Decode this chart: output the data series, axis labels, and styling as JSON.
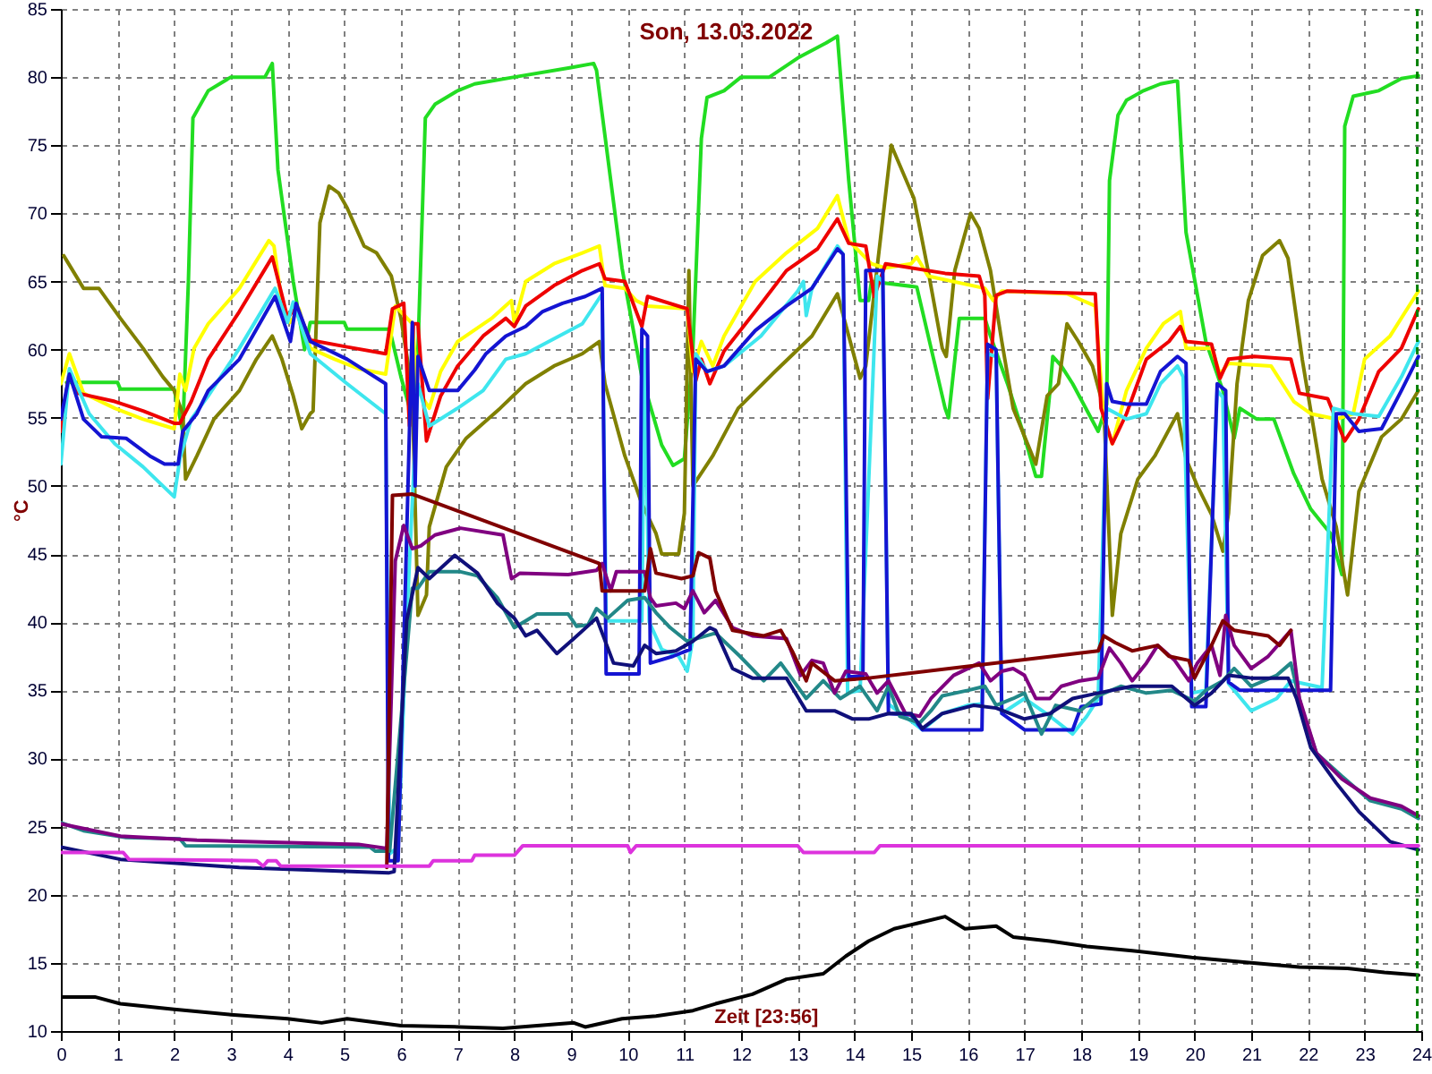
{
  "chart_data": {
    "type": "line",
    "title": "Son, 13.03.2022",
    "xlabel": "Zeit [23:56]",
    "ylabel": "°C",
    "xlim": [
      0,
      24
    ],
    "ylim": [
      10,
      85
    ],
    "xticks": [
      0,
      1,
      2,
      3,
      4,
      5,
      6,
      7,
      8,
      9,
      10,
      11,
      12,
      13,
      14,
      15,
      16,
      17,
      18,
      19,
      20,
      21,
      22,
      23,
      24
    ],
    "yticks": [
      10,
      15,
      20,
      25,
      30,
      35,
      40,
      45,
      50,
      55,
      60,
      65,
      70,
      75,
      80,
      85
    ],
    "grid": true,
    "ref_lines": [
      {
        "axis": "x",
        "value": 23.93,
        "color": "#008000",
        "line_style": "dashed"
      }
    ],
    "series": [
      {
        "color": "#22dd22",
        "x": [
          0.1,
          1.0,
          1.05,
          2.0,
          2.15,
          2.25,
          2.33,
          2.6,
          2.8,
          3.0,
          3.6,
          3.73,
          3.83,
          4.1,
          4.3,
          4.4,
          5.0,
          5.05,
          5.8,
          6.0,
          6.2,
          6.3,
          6.43,
          6.6,
          7.0,
          7.3,
          8.0,
          9.0,
          9.4,
          9.45,
          9.9,
          10.25,
          10.6,
          10.8,
          11.0,
          11.15,
          11.3,
          11.4,
          11.7,
          12.0,
          12.5,
          13.0,
          13.5,
          13.7,
          13.9,
          14.1,
          14.25,
          14.3,
          15.1,
          15.6,
          15.66,
          15.85,
          16.3,
          16.4,
          16.7,
          17.0,
          17.2,
          17.3,
          17.45,
          17.5,
          17.65,
          17.85,
          18.3,
          18.45,
          18.5,
          18.65,
          18.8,
          19.1,
          19.4,
          19.65,
          19.7,
          19.85,
          20.2,
          20.5,
          20.7,
          20.8,
          21.1,
          21.4,
          21.75,
          22.05,
          22.4,
          22.6,
          22.65,
          22.8,
          23.25,
          23.65,
          23.95
        ],
        "values": [
          57.6,
          57.6,
          57.1,
          57.1,
          54,
          65,
          77,
          79,
          79.5,
          80,
          80,
          81,
          73.2,
          65,
          60,
          62,
          62,
          61.5,
          61.5,
          58,
          55,
          60,
          77,
          78,
          79,
          79.5,
          80,
          80.7,
          81,
          80.5,
          66,
          58,
          53,
          51.5,
          52,
          60,
          75.5,
          78.5,
          79,
          80,
          80,
          81.4,
          82.5,
          83,
          72.4,
          63.6,
          63.6,
          65,
          64.6,
          55.7,
          55,
          62.3,
          62.3,
          61,
          57.5,
          53.6,
          50.7,
          50.7,
          57,
          59.5,
          58.8,
          57.5,
          54,
          56,
          72.4,
          77.2,
          78.3,
          79,
          79.5,
          79.7,
          79.7,
          68.6,
          60.6,
          57,
          53.5,
          55.7,
          54.9,
          54.9,
          50.9,
          48.3,
          46.5,
          43.5,
          76.4,
          78.6,
          79,
          79.9,
          80.1
        ]
      },
      {
        "color": "#808000",
        "x": [
          0.05,
          0.4,
          0.67,
          1.05,
          1.45,
          1.8,
          2.0,
          2.15,
          2.2,
          2.4,
          2.7,
          3.15,
          3.45,
          3.73,
          3.9,
          4.1,
          4.25,
          4.4,
          4.45,
          4.57,
          4.73,
          4.9,
          5.05,
          5.35,
          5.57,
          5.83,
          6.0,
          6.2,
          6.3,
          6.45,
          6.5,
          6.8,
          7.15,
          7.75,
          8.2,
          8.7,
          9.2,
          9.5,
          9.6,
          9.95,
          10.25,
          10.5,
          10.6,
          10.9,
          11.0,
          11.08,
          11.15,
          11.5,
          11.95,
          12.6,
          13.25,
          13.7,
          14.1,
          14.2,
          14.4,
          14.65,
          15.05,
          15.3,
          15.55,
          15.62,
          15.77,
          16.05,
          16.2,
          16.4,
          16.6,
          16.8,
          17.2,
          17.4,
          17.6,
          17.75,
          17.95,
          18.2,
          18.4,
          18.55,
          18.7,
          19.0,
          19.3,
          19.7,
          19.85,
          20.05,
          20.3,
          20.5,
          20.6,
          20.75,
          20.95,
          21.2,
          21.5,
          21.65,
          21.9,
          22.25,
          22.5,
          22.7,
          22.9,
          23.3,
          23.65,
          23.95
        ],
        "values": [
          66.9,
          64.5,
          64.5,
          62.3,
          60.1,
          58,
          57,
          55.3,
          50.5,
          52.2,
          54.9,
          57,
          59.3,
          61,
          59.3,
          56.6,
          54.2,
          55.3,
          55.5,
          69.3,
          72,
          71.5,
          70.4,
          67.6,
          67.1,
          65.4,
          62.3,
          57,
          40.5,
          42,
          47,
          51.4,
          53.5,
          55.7,
          57.5,
          58.8,
          59.7,
          60.6,
          57.5,
          52.2,
          48.7,
          46.5,
          45,
          45,
          48,
          65.8,
          50,
          52.2,
          55.7,
          58.4,
          61,
          64.1,
          57.9,
          58.8,
          66,
          75,
          71.1,
          65.8,
          60.1,
          59.5,
          65.8,
          70,
          68.9,
          65.8,
          60.6,
          55.7,
          51.6,
          56.6,
          57.5,
          61.9,
          60.6,
          58.8,
          55.7,
          40.5,
          46.5,
          50.5,
          52.2,
          55.3,
          52,
          50,
          47.9,
          45.2,
          48,
          57.5,
          63.6,
          66.9,
          68,
          66.7,
          59.3,
          50.5,
          47,
          42,
          49.6,
          53.6,
          54.9,
          57
        ]
      },
      {
        "color": "#ffff00",
        "x": [
          0.0,
          0.15,
          0.4,
          0.95,
          1.45,
          2.0,
          2.1,
          2.2,
          2.35,
          2.6,
          3.15,
          3.67,
          3.76,
          3.9,
          4.05,
          4.2,
          4.4,
          4.83,
          5.25,
          5.73,
          5.9,
          6.2,
          6.3,
          6.5,
          6.7,
          7.0,
          7.6,
          7.95,
          8.0,
          8.2,
          8.7,
          9.2,
          9.5,
          9.6,
          9.95,
          10.15,
          10.35,
          11.05,
          11.15,
          11.3,
          11.5,
          11.7,
          12.25,
          12.8,
          13.35,
          13.7,
          13.9,
          14.3,
          14.55,
          15.0,
          15.1,
          15.3,
          16.3,
          16.45,
          16.6,
          17.75,
          18.25,
          18.4,
          18.55,
          18.8,
          19.15,
          19.45,
          19.75,
          19.85,
          20.3,
          20.45,
          20.6,
          21.35,
          21.75,
          22.05,
          22.5,
          22.8,
          23.0,
          23.45,
          23.95
        ],
        "values": [
          57.5,
          59.7,
          56.8,
          55.7,
          54.9,
          54.2,
          58.2,
          57,
          60.1,
          61.9,
          64.5,
          68,
          67.6,
          63.4,
          62,
          63,
          60.1,
          59.3,
          58.6,
          58.2,
          63.2,
          61.9,
          57,
          55.7,
          58.4,
          60.6,
          62.3,
          63.6,
          61.9,
          65,
          66.3,
          67.1,
          67.6,
          64.7,
          64.5,
          63.6,
          63.2,
          63,
          58.4,
          60.6,
          58.8,
          61,
          65,
          67.1,
          68.9,
          71.3,
          68,
          66.3,
          66,
          66.3,
          66.8,
          65.4,
          64.5,
          63.6,
          64.3,
          64.1,
          63.2,
          54.9,
          53.1,
          57,
          60.1,
          61.9,
          62.8,
          60.1,
          60.1,
          58.2,
          59,
          58.8,
          56.2,
          55.3,
          54.9,
          55.3,
          59.3,
          61,
          64.3
        ]
      },
      {
        "color": "#ee0000",
        "x": [
          0.0,
          0.15,
          0.3,
          0.95,
          1.45,
          2.0,
          2.1,
          2.3,
          2.6,
          3.15,
          3.73,
          3.9,
          4.0,
          4.15,
          4.4,
          5.05,
          5.73,
          5.85,
          6.05,
          6.15,
          6.22,
          6.3,
          6.45,
          6.7,
          7.0,
          7.45,
          7.85,
          8.0,
          8.2,
          8.7,
          9.2,
          9.5,
          9.6,
          9.95,
          10.25,
          10.35,
          11.05,
          11.2,
          11.3,
          11.45,
          11.7,
          12.25,
          12.8,
          13.35,
          13.7,
          13.9,
          14.2,
          14.35,
          14.55,
          15.6,
          16.2,
          16.3,
          16.35,
          16.5,
          16.7,
          18.25,
          18.35,
          18.55,
          18.8,
          19.15,
          19.55,
          19.75,
          19.85,
          20.3,
          20.45,
          20.6,
          21.05,
          21.7,
          21.85,
          22.35,
          22.65,
          22.9,
          23.25,
          23.65,
          23.95
        ],
        "values": [
          54,
          58.4,
          56.8,
          56.2,
          55.5,
          54.6,
          54.6,
          56.2,
          59.3,
          62.8,
          66.8,
          64,
          62.3,
          63.2,
          60.7,
          60.2,
          59.7,
          63,
          63.4,
          54.4,
          61.9,
          61.9,
          53.3,
          56.6,
          58.8,
          61,
          62.3,
          61.7,
          63.2,
          64.7,
          65.8,
          66.3,
          65.2,
          65,
          61.7,
          63.9,
          63,
          57.7,
          59.3,
          57.5,
          59.9,
          62.8,
          65.8,
          67.4,
          69.6,
          67.8,
          67.6,
          63.9,
          66.3,
          65.6,
          65.4,
          64,
          56.4,
          64,
          64.3,
          64.1,
          55.7,
          53.1,
          55.3,
          59.3,
          60.6,
          61.7,
          60.6,
          60.4,
          57.9,
          59.3,
          59.5,
          59.3,
          56.8,
          56.4,
          53.3,
          54.9,
          58.4,
          60.1,
          63
        ]
      },
      {
        "color": "#3ee6ee",
        "x": [
          0.0,
          0.15,
          0.5,
          0.95,
          1.45,
          2.0,
          2.1,
          2.3,
          2.6,
          3.15,
          3.78,
          4.0,
          4.1,
          4.4,
          5.05,
          5.73,
          5.8,
          5.95,
          6.1,
          6.3,
          6.5,
          7.0,
          7.45,
          7.85,
          8.2,
          8.7,
          9.2,
          9.55,
          9.62,
          10.25,
          10.3,
          10.38,
          10.6,
          10.9,
          11.05,
          11.15,
          11.2,
          11.4,
          11.7,
          12.35,
          13.0,
          13.1,
          13.15,
          13.25,
          13.7,
          13.8,
          13.88,
          14.1,
          14.4,
          14.5,
          14.6,
          15.2,
          15.55,
          16.0,
          16.25,
          16.35,
          16.5,
          16.6,
          17.0,
          17.45,
          17.85,
          18.1,
          18.3,
          18.45,
          18.8,
          19.15,
          19.4,
          19.7,
          19.8,
          19.95,
          20.2,
          20.4,
          20.5,
          20.6,
          21.0,
          21.45,
          21.7,
          22.25,
          22.45,
          22.8,
          23.25,
          23.65,
          23.95
        ],
        "values": [
          51.6,
          58.6,
          55.3,
          53.1,
          51.4,
          49.2,
          52,
          54.9,
          56.6,
          60.1,
          64.5,
          62,
          63.5,
          59.7,
          57.5,
          55.3,
          23,
          23.5,
          40,
          57.5,
          54.4,
          55.7,
          57,
          59.3,
          59.7,
          60.8,
          61.9,
          64.1,
          40.1,
          40.1,
          60,
          40,
          38,
          37.5,
          36.4,
          38.8,
          59.7,
          58.4,
          58.8,
          61,
          64.3,
          65,
          62.5,
          64.5,
          67.6,
          67,
          34.8,
          35,
          65.4,
          65,
          34,
          32.1,
          33.3,
          33.9,
          34,
          59.7,
          59.5,
          33.3,
          34.4,
          33.1,
          31.8,
          33.1,
          34.4,
          55.7,
          54.9,
          55.3,
          57.5,
          58.8,
          58,
          34.8,
          35,
          57,
          56.5,
          35.5,
          33.5,
          34.4,
          35.7,
          35.2,
          55.7,
          55.3,
          55.1,
          58,
          60.6
        ]
      },
      {
        "color": "#1414d2",
        "x": [
          0,
          0.15,
          0.4,
          0.72,
          1.15,
          1.57,
          1.83,
          2.07,
          2.15,
          2.4,
          2.6,
          3.15,
          3.78,
          4.05,
          4.15,
          4.4,
          5.05,
          5.73,
          5.78,
          5.95,
          6.2,
          6.25,
          6.3,
          6.5,
          7.0,
          7.3,
          7.5,
          7.85,
          8.2,
          8.5,
          8.85,
          9.25,
          9.55,
          9.62,
          10.2,
          10.25,
          10.35,
          10.4,
          10.8,
          11.1,
          11.2,
          11.4,
          11.7,
          12.25,
          12.8,
          13.25,
          13.7,
          13.8,
          13.9,
          14.15,
          14.2,
          14.5,
          14.6,
          15.0,
          15.2,
          16.25,
          16.35,
          16.5,
          16.6,
          17.0,
          17.85,
          18.0,
          18.35,
          18.45,
          18.55,
          18.8,
          19.15,
          19.4,
          19.7,
          19.85,
          19.95,
          20.2,
          20.4,
          20.55,
          20.6,
          20.8,
          22.4,
          22.5,
          22.65,
          22.9,
          23.3,
          23.65,
          23.95
        ],
        "values": [
          54.9,
          58.2,
          54.9,
          53.6,
          53.5,
          52.2,
          51.6,
          51.6,
          54,
          55.3,
          57,
          59.3,
          63.9,
          60.6,
          63.4,
          60.6,
          59.3,
          57.5,
          22.5,
          22.5,
          62,
          50,
          59.5,
          57,
          57,
          58.5,
          59.7,
          61,
          61.7,
          62.8,
          63.4,
          63.9,
          64.5,
          36.2,
          36.2,
          61.5,
          61,
          37,
          37.5,
          38,
          59.3,
          58.4,
          58.8,
          61.4,
          63.2,
          64.5,
          67.4,
          67,
          36,
          36,
          65.8,
          65.8,
          33.3,
          33.2,
          32.1,
          32.1,
          60.4,
          60,
          33.3,
          32.1,
          32.1,
          33.8,
          34,
          57.5,
          56.2,
          56,
          56,
          58.4,
          59.5,
          59,
          33.8,
          33.8,
          57.5,
          57,
          35.6,
          35,
          35,
          55.3,
          55.3,
          54,
          54.2,
          57,
          59.5
        ]
      },
      {
        "color": "#228888",
        "x": [
          0,
          0.4,
          1.15,
          2.1,
          2.2,
          5.45,
          5.55,
          5.8,
          6.2,
          6.3,
          6.5,
          7.05,
          7.35,
          7.7,
          8.0,
          8.2,
          8.4,
          8.95,
          9.1,
          9.3,
          9.45,
          9.65,
          10.0,
          10.3,
          10.5,
          10.75,
          11.05,
          11.55,
          11.98,
          12.4,
          12.7,
          13.15,
          13.45,
          13.75,
          14.1,
          14.4,
          14.6,
          14.8,
          15.15,
          15.35,
          15.55,
          16.0,
          16.3,
          16.5,
          16.8,
          17.0,
          17.3,
          17.55,
          17.98,
          18.3,
          18.7,
          19.15,
          19.6,
          20.0,
          20.2,
          20.5,
          20.7,
          21.0,
          21.45,
          21.7,
          21.9,
          22.15,
          22.6,
          23.1,
          23.65,
          23.95
        ],
        "values": [
          25.3,
          24.7,
          24.2,
          24.1,
          23.6,
          23.5,
          23.2,
          23.2,
          42.5,
          42.5,
          43.7,
          43.7,
          43.4,
          41.8,
          39.6,
          40.1,
          40.6,
          40.6,
          39.7,
          39.8,
          41,
          40.3,
          41.6,
          41.8,
          40.7,
          39.6,
          38.6,
          39.2,
          37.5,
          35.7,
          37,
          34.4,
          35.7,
          34.4,
          35.3,
          33.5,
          35.3,
          33.1,
          32.6,
          33.5,
          34.6,
          35,
          35.3,
          33.9,
          34.4,
          34.8,
          31.8,
          33.9,
          33.5,
          34.6,
          35.3,
          34.8,
          35,
          34.2,
          35,
          35.7,
          36.6,
          35.3,
          36.1,
          37,
          33.5,
          30.4,
          28.7,
          26.9,
          26.3,
          25.6
        ]
      },
      {
        "color": "#800080",
        "x": [
          0,
          1.05,
          2.4,
          5.25,
          5.75,
          5.9,
          6.05,
          6.2,
          6.35,
          6.6,
          7.05,
          7.8,
          7.95,
          8.1,
          8.95,
          9.45,
          9.55,
          9.7,
          9.8,
          10.3,
          10.4,
          10.5,
          10.85,
          11.0,
          11.15,
          11.35,
          11.55,
          11.85,
          12.2,
          12.8,
          13.05,
          13.25,
          13.45,
          13.65,
          13.85,
          14.2,
          14.4,
          14.6,
          14.9,
          15.15,
          15.35,
          15.75,
          16.2,
          16.4,
          16.6,
          16.8,
          17.0,
          17.2,
          17.45,
          17.65,
          17.98,
          18.3,
          18.5,
          18.7,
          18.9,
          19.15,
          19.35,
          19.65,
          19.9,
          20.05,
          20.3,
          20.45,
          20.55,
          20.7,
          21.0,
          21.3,
          21.7,
          21.85,
          22.15,
          22.6,
          23.1,
          23.65,
          23.95
        ],
        "values": [
          25.2,
          24.3,
          24,
          23.7,
          23.4,
          44.5,
          47.1,
          45.4,
          45.6,
          46.4,
          46.9,
          46.4,
          43.2,
          43.6,
          43.5,
          43.8,
          44.3,
          42.3,
          43.7,
          43.7,
          41.8,
          41.2,
          41.4,
          41,
          42.3,
          40.7,
          41.6,
          39.6,
          39,
          38.8,
          36.1,
          37.2,
          37,
          34.8,
          36.4,
          36.2,
          34.8,
          35.7,
          33.3,
          33.1,
          34.4,
          36.1,
          37,
          35.7,
          36.4,
          36.6,
          36.1,
          34.4,
          34.4,
          35.3,
          35.7,
          35.9,
          38.1,
          37,
          35.7,
          37,
          38.3,
          37.2,
          35.7,
          37,
          38.3,
          36.1,
          40.5,
          38.3,
          36.6,
          37.5,
          39.4,
          34.4,
          30.4,
          28.5,
          27.1,
          26.5,
          25.8
        ]
      },
      {
        "color": "#800000",
        "x": [
          5.75,
          5.85,
          6.2,
          9.5,
          9.55,
          10.3,
          10.4,
          10.5,
          10.95,
          11.15,
          11.25,
          11.45,
          11.55,
          11.85,
          12.4,
          12.7,
          12.9,
          13.15,
          13.25,
          13.65,
          14.25,
          18.3,
          18.4,
          18.6,
          18.9,
          19.35,
          19.55,
          19.9,
          20.0,
          20.3,
          20.5,
          20.7,
          21.3,
          21.5,
          21.7
        ],
        "values": [
          22,
          49.3,
          49.4,
          44.3,
          42.3,
          42.3,
          45.4,
          43.6,
          43.2,
          43.4,
          45.1,
          44.7,
          42.3,
          39.4,
          39,
          39.4,
          37.9,
          35.7,
          37,
          35.7,
          35.9,
          37.9,
          39,
          38.5,
          37.9,
          38.3,
          37.5,
          37.2,
          35.9,
          38.3,
          40.1,
          39.4,
          39,
          38.3,
          39.4
        ]
      },
      {
        "color": "#10107a",
        "x": [
          0,
          1.05,
          3.15,
          5.78,
          5.88,
          6.1,
          6.3,
          6.5,
          6.95,
          7.35,
          7.7,
          8.0,
          8.2,
          8.4,
          8.75,
          9.05,
          9.45,
          9.65,
          9.75,
          10.1,
          10.3,
          10.5,
          10.85,
          11.15,
          11.45,
          11.55,
          11.85,
          12.2,
          12.8,
          13.15,
          13.65,
          13.97,
          14.25,
          14.6,
          15.0,
          15.2,
          15.55,
          16.1,
          16.5,
          17.0,
          17.45,
          17.85,
          18.3,
          18.9,
          19.6,
          20.0,
          20.3,
          20.6,
          21.0,
          21.65,
          21.8,
          22.05,
          22.5,
          22.9,
          23.45,
          23.95
        ],
        "values": [
          23.5,
          22.6,
          22,
          21.6,
          21.7,
          40.1,
          44,
          43.2,
          44.9,
          43.6,
          41.4,
          40.3,
          39,
          39.4,
          37.7,
          38.8,
          40.3,
          38.1,
          37,
          36.8,
          38.3,
          37.7,
          37.9,
          38.6,
          39.6,
          39.4,
          36.6,
          35.9,
          35.9,
          33.5,
          33.5,
          32.9,
          32.9,
          33.3,
          33.3,
          32.2,
          33.3,
          33.9,
          33.7,
          32.9,
          33.3,
          34.4,
          34.8,
          35.3,
          35.3,
          33.9,
          34.8,
          36.1,
          35.9,
          35.9,
          34.4,
          30.8,
          28.2,
          26.1,
          23.9,
          23.3
        ]
      },
      {
        "color": "#dd33dd",
        "x": [
          0,
          1.1,
          1.2,
          3.45,
          3.57,
          3.65,
          3.8,
          3.88,
          6.5,
          6.57,
          7.25,
          7.3,
          8.0,
          8.15,
          10.0,
          10.05,
          10.15,
          13.0,
          13.1,
          14.35,
          14.45,
          23.95
        ],
        "values": [
          23.1,
          23.1,
          22.6,
          22.5,
          22.1,
          22.5,
          22.5,
          22.1,
          22.1,
          22.5,
          22.5,
          22.9,
          22.9,
          23.6,
          23.6,
          23.1,
          23.6,
          23.6,
          23.1,
          23.1,
          23.6,
          23.6
        ]
      },
      {
        "color": "#000000",
        "x": [
          0,
          0.6,
          1.05,
          2,
          3,
          4,
          4.6,
          5.05,
          6,
          7.05,
          7.8,
          8.4,
          9.05,
          9.25,
          9.9,
          10.5,
          11.15,
          11.55,
          12.2,
          12.8,
          13.45,
          13.85,
          14.25,
          14.7,
          15.1,
          15.6,
          15.95,
          16.5,
          16.8,
          17.45,
          18.1,
          18.9,
          19.95,
          21.0,
          21.85,
          22.7,
          23.35,
          23.95
        ],
        "values": [
          12.5,
          12.5,
          12,
          11.6,
          11.2,
          10.9,
          10.6,
          10.9,
          10.4,
          10.3,
          10.2,
          10.4,
          10.6,
          10.3,
          10.9,
          11.1,
          11.5,
          12,
          12.7,
          13.8,
          14.2,
          15.5,
          16.6,
          17.5,
          17.9,
          18.4,
          17.5,
          17.7,
          16.9,
          16.6,
          16.2,
          15.9,
          15.4,
          15,
          14.7,
          14.6,
          14.3,
          14.1
        ]
      }
    ]
  }
}
